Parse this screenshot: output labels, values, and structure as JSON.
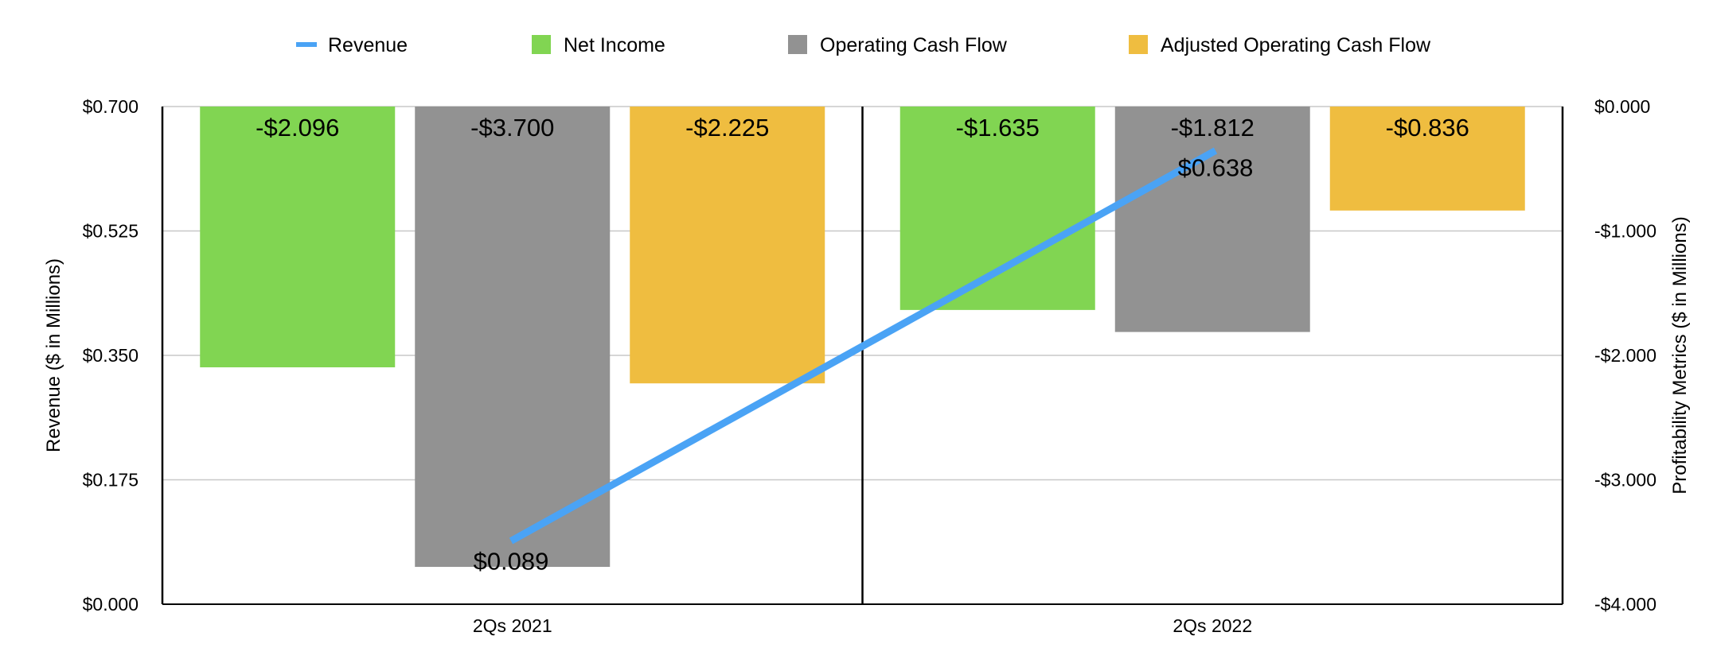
{
  "chart_data": {
    "type": "bar",
    "categories": [
      "2Qs 2021",
      "2Qs 2022"
    ],
    "series": [
      {
        "name": "Net Income",
        "values": [
          -2.096,
          -1.635
        ],
        "labels": [
          "-$2.096",
          "-$1.635"
        ],
        "color": "#81d552",
        "axis": "right"
      },
      {
        "name": "Operating Cash Flow",
        "values": [
          -3.7,
          -1.812
        ],
        "labels": [
          "-$3.700",
          "-$1.812"
        ],
        "color": "#929292",
        "axis": "right"
      },
      {
        "name": "Adjusted Operating Cash Flow",
        "values": [
          -2.225,
          -0.836
        ],
        "labels": [
          "-$2.225",
          "-$0.836"
        ],
        "color": "#efbd40",
        "axis": "right"
      }
    ],
    "line_series": {
      "name": "Revenue",
      "values": [
        0.089,
        0.638
      ],
      "labels": [
        "$0.089",
        "$0.638"
      ],
      "color": "#4aa3f5",
      "axis": "left"
    },
    "legend": {
      "position": "top",
      "items": [
        {
          "name": "Revenue",
          "color": "#4aa3f5",
          "shape": "line"
        },
        {
          "name": "Net Income",
          "color": "#81d552",
          "shape": "square"
        },
        {
          "name": "Operating Cash Flow",
          "color": "#929292",
          "shape": "square"
        },
        {
          "name": "Adjusted Operating Cash Flow",
          "color": "#efbd40",
          "shape": "square"
        }
      ]
    },
    "left_axis": {
      "title": "Revenue ($ in Millions)",
      "range": [
        0,
        0.7
      ],
      "ticks": [
        0,
        0.175,
        0.35,
        0.525,
        0.7
      ],
      "tick_labels": [
        "$0.000",
        "$0.175",
        "$0.350",
        "$0.525",
        "$0.700"
      ]
    },
    "right_axis": {
      "title": "Profitability Metrics ($ in Millions)",
      "range": [
        -4,
        0
      ],
      "ticks": [
        -4,
        -3,
        -2,
        -1,
        0
      ],
      "tick_labels": [
        "-$4.000",
        "-$3.000",
        "-$2.000",
        "-$1.000",
        "$0.000"
      ]
    },
    "grid": true
  }
}
